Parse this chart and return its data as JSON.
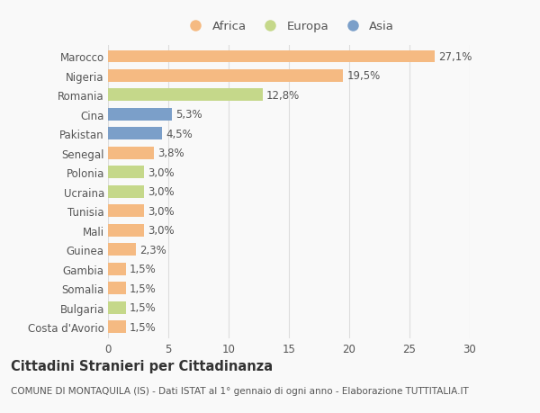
{
  "countries": [
    "Marocco",
    "Nigeria",
    "Romania",
    "Cina",
    "Pakistan",
    "Senegal",
    "Polonia",
    "Ucraina",
    "Tunisia",
    "Mali",
    "Guinea",
    "Gambia",
    "Somalia",
    "Bulgaria",
    "Costa d'Avorio"
  ],
  "values": [
    27.1,
    19.5,
    12.8,
    5.3,
    4.5,
    3.8,
    3.0,
    3.0,
    3.0,
    3.0,
    2.3,
    1.5,
    1.5,
    1.5,
    1.5
  ],
  "colors": [
    "#f5ba82",
    "#f5ba82",
    "#c5d88a",
    "#7b9fc9",
    "#7b9fc9",
    "#f5ba82",
    "#c5d88a",
    "#c5d88a",
    "#f5ba82",
    "#f5ba82",
    "#f5ba82",
    "#f5ba82",
    "#f5ba82",
    "#c5d88a",
    "#f5ba82"
  ],
  "labels": [
    "27,1%",
    "19,5%",
    "12,8%",
    "5,3%",
    "4,5%",
    "3,8%",
    "3,0%",
    "3,0%",
    "3,0%",
    "3,0%",
    "2,3%",
    "1,5%",
    "1,5%",
    "1,5%",
    "1,5%"
  ],
  "legend": [
    {
      "label": "Africa",
      "color": "#f5ba82"
    },
    {
      "label": "Europa",
      "color": "#c5d88a"
    },
    {
      "label": "Asia",
      "color": "#7b9fc9"
    }
  ],
  "title": "Cittadini Stranieri per Cittadinanza",
  "subtitle": "COMUNE DI MONTAQUILA (IS) - Dati ISTAT al 1° gennaio di ogni anno - Elaborazione TUTTITALIA.IT",
  "xlim": [
    0,
    30
  ],
  "xticks": [
    0,
    5,
    10,
    15,
    20,
    25,
    30
  ],
  "background_color": "#f9f9f9",
  "bar_height": 0.65,
  "grid_color": "#dddddd",
  "text_color": "#555555",
  "label_fontsize": 8.5,
  "tick_fontsize": 8.5,
  "title_fontsize": 10.5,
  "subtitle_fontsize": 7.5
}
